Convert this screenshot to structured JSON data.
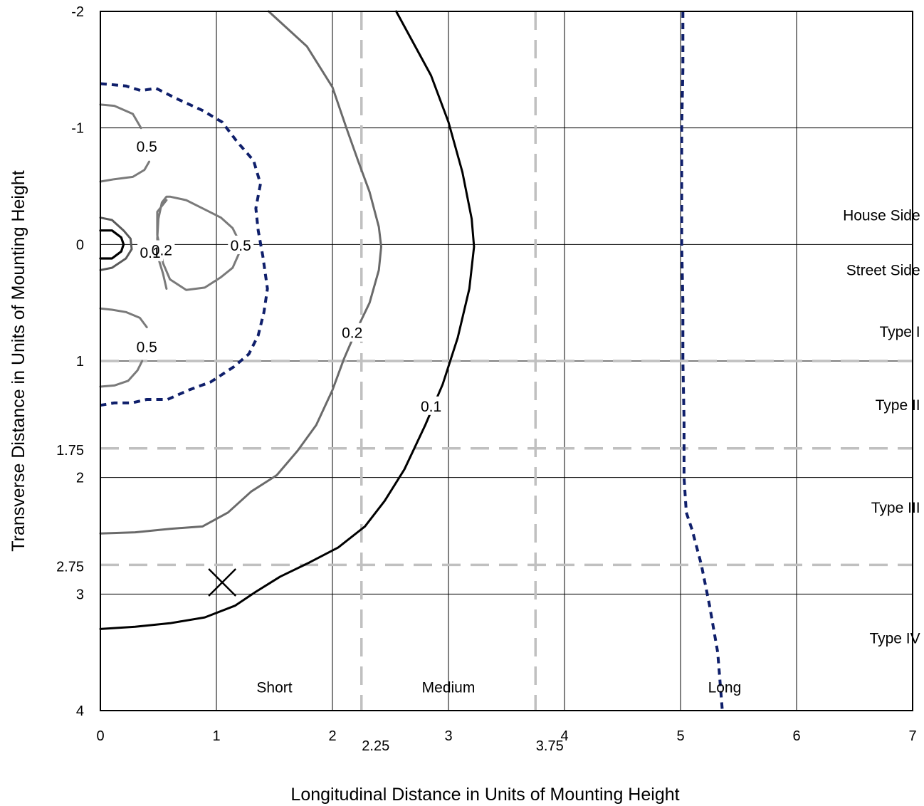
{
  "chart_data": {
    "type": "line",
    "title": "",
    "xlabel": "Longitudinal Distance in Units of Mounting Height",
    "ylabel": "Transverse Distance in Units of Mounting Height",
    "xlim": [
      0,
      7
    ],
    "ylim": [
      -2,
      4
    ],
    "y_inverted": true,
    "grid": true,
    "x_ticks": [
      0,
      1,
      2,
      3,
      4,
      5,
      6,
      7
    ],
    "y_ticks": [
      -2,
      -1,
      0,
      1,
      2,
      3,
      4
    ],
    "x_ticks_extra": [
      2.25,
      3.75
    ],
    "y_ticks_extra": [
      1.75,
      2.75
    ],
    "boundary_lines": {
      "vertical": [
        2.25,
        3.75
      ],
      "horizontal": [
        1,
        1.75,
        2.75
      ],
      "style": "dashed",
      "color": "#c0c0c0"
    },
    "region_labels": {
      "transverse": [
        {
          "text": "House Side",
          "x": 6.55,
          "y": -0.25
        },
        {
          "text": "Street Side",
          "x": 6.55,
          "y": 0.22
        },
        {
          "text": "Type I",
          "x": 6.55,
          "y": 0.75
        },
        {
          "text": "Type II",
          "x": 6.55,
          "y": 1.38
        },
        {
          "text": "Type III",
          "x": 6.55,
          "y": 2.26
        },
        {
          "text": "Type IV",
          "x": 6.55,
          "y": 3.38
        }
      ],
      "longitudinal": [
        {
          "text": "Short",
          "x": 1.5,
          "y": 3.8
        },
        {
          "text": "Medium",
          "x": 3.0,
          "y": 3.8
        },
        {
          "text": "Long",
          "x": 5.38,
          "y": 3.8
        }
      ]
    },
    "marker": {
      "symbol": "X",
      "x": 1.05,
      "y": 2.9
    },
    "contour_labels": [
      {
        "text": "0.5",
        "x": 0.4,
        "y": -0.84
      },
      {
        "text": "0.5",
        "x": 0.4,
        "y": 0.88
      },
      {
        "text": "0.5",
        "x": 1.21,
        "y": 0.01
      },
      {
        "text": "0.2",
        "x": 0.53,
        "y": 0.05
      },
      {
        "text": "0.1",
        "x": 0.43,
        "y": 0.07
      },
      {
        "text": "0.2",
        "x": 2.17,
        "y": 0.76
      },
      {
        "text": "0.1",
        "x": 2.85,
        "y": 1.39
      }
    ],
    "series": [
      {
        "name": "",
        "color": "#000000",
        "style": "solid",
        "width": 3.2,
        "x": [
          0,
          0.1,
          0.18,
          0.2,
          0.18,
          0.1,
          0
        ],
        "y": [
          -0.12,
          -0.12,
          -0.06,
          0,
          0.06,
          0.12,
          0.12
        ]
      },
      {
        "name": "",
        "color": "#5a5a5a",
        "style": "solid",
        "width": 3,
        "x": [
          0,
          0.1,
          0.2,
          0.26,
          0.27,
          0.22,
          0.1,
          0
        ],
        "y": [
          -0.23,
          -0.21,
          -0.12,
          -0.05,
          0.04,
          0.12,
          0.2,
          0.22
        ]
      },
      {
        "name": "",
        "color": "#7a7a7a",
        "style": "solid",
        "width": 3,
        "x": [
          0.57,
          0.49,
          0.49,
          0.52,
          0.54,
          0.6,
          0.74,
          0.9,
          1.04,
          1.14,
          1.22,
          1.14,
          1.04,
          0.9,
          0.74,
          0.6,
          0.57,
          0.53,
          0.5,
          0.49,
          0.5,
          0.54,
          0.57
        ],
        "y": [
          -0.38,
          -0.28,
          -0.08,
          0.06,
          0.16,
          0.3,
          0.39,
          0.37,
          0.28,
          0.2,
          0.02,
          -0.14,
          -0.23,
          -0.3,
          -0.38,
          -0.41,
          -0.41,
          -0.36,
          -0.22,
          -0.05,
          0.12,
          0.25,
          0.38
        ]
      },
      {
        "name": "",
        "color": "#7a7a7a",
        "style": "solid",
        "width": 3,
        "x": [
          0,
          0.12,
          0.28,
          0.35
        ],
        "y": [
          -1.2,
          -1.19,
          -1.12,
          -1.0
        ]
      },
      {
        "name": "",
        "color": "#7a7a7a",
        "style": "solid",
        "width": 3,
        "x": [
          0,
          0.12,
          0.28,
          0.38,
          0.42
        ],
        "y": [
          -0.54,
          -0.56,
          -0.58,
          -0.64,
          -0.71
        ]
      },
      {
        "name": "",
        "color": "#7a7a7a",
        "style": "solid",
        "width": 3,
        "x": [
          0,
          0.1,
          0.22,
          0.34,
          0.4
        ],
        "y": [
          0.55,
          0.56,
          0.58,
          0.63,
          0.71
        ]
      },
      {
        "name": "",
        "color": "#7a7a7a",
        "style": "solid",
        "width": 3,
        "x": [
          0,
          0.12,
          0.24,
          0.32,
          0.36
        ],
        "y": [
          1.22,
          1.21,
          1.17,
          1.08,
          1.0
        ]
      },
      {
        "name": "",
        "color": "#0f1f6b",
        "style": "dashed",
        "width": 4,
        "x": [
          0,
          0.22,
          0.35,
          0.48,
          0.66,
          0.88,
          1.05,
          1.18,
          1.32,
          1.38,
          1.34,
          1.36,
          1.4,
          1.44,
          1.41,
          1.36,
          1.28,
          1.15,
          0.95,
          0.76,
          0.58,
          0.4,
          0.27,
          0.12,
          0
        ],
        "y": [
          -1.38,
          -1.36,
          -1.32,
          -1.34,
          -1.25,
          -1.15,
          -1.05,
          -0.88,
          -0.72,
          -0.52,
          -0.31,
          -0.12,
          0.1,
          0.38,
          0.58,
          0.78,
          0.94,
          1.05,
          1.18,
          1.25,
          1.33,
          1.33,
          1.36,
          1.36,
          1.38
        ]
      },
      {
        "name": "",
        "color": "#6a6a6a",
        "style": "solid",
        "width": 3,
        "x": [
          1.45,
          1.78,
          2.0,
          2.12,
          2.22,
          2.32,
          2.4,
          2.42,
          2.4,
          2.32,
          2.2,
          2.1,
          2.0,
          1.86,
          1.7,
          1.52,
          1.3,
          1.1,
          0.88,
          0.6,
          0.3,
          0
        ],
        "y": [
          -2.0,
          -1.7,
          -1.35,
          -1.0,
          -0.72,
          -0.45,
          -0.15,
          0.02,
          0.22,
          0.5,
          0.75,
          0.98,
          1.25,
          1.55,
          1.77,
          1.98,
          2.12,
          2.3,
          2.42,
          2.44,
          2.47,
          2.48
        ]
      },
      {
        "name": "",
        "color": "#000000",
        "style": "solid",
        "width": 3,
        "x": [
          2.55,
          2.85,
          3.0,
          3.12,
          3.2,
          3.22,
          3.18,
          3.08,
          2.95,
          2.8,
          2.62,
          2.45,
          2.28,
          2.05,
          1.8,
          1.55,
          1.34,
          1.16,
          0.9,
          0.6,
          0.3,
          0
        ],
        "y": [
          -2.0,
          -1.45,
          -1.05,
          -0.62,
          -0.22,
          0.02,
          0.38,
          0.8,
          1.2,
          1.55,
          1.93,
          2.2,
          2.42,
          2.6,
          2.73,
          2.85,
          2.98,
          3.1,
          3.2,
          3.25,
          3.28,
          3.3
        ]
      },
      {
        "name": "",
        "color": "#0f1f6b",
        "style": "dashed",
        "width": 4,
        "x": [
          5.02,
          5.02,
          5.01,
          5.01,
          5.01,
          5.02,
          5.02,
          5.03,
          5.03,
          5.05,
          5.1,
          5.18,
          5.25,
          5.32,
          5.36
        ],
        "y": [
          -2.0,
          -1.5,
          -1.0,
          -0.5,
          0.0,
          0.5,
          1.0,
          1.5,
          2.0,
          2.3,
          2.45,
          2.75,
          3.1,
          3.5,
          4.0
        ]
      }
    ]
  }
}
